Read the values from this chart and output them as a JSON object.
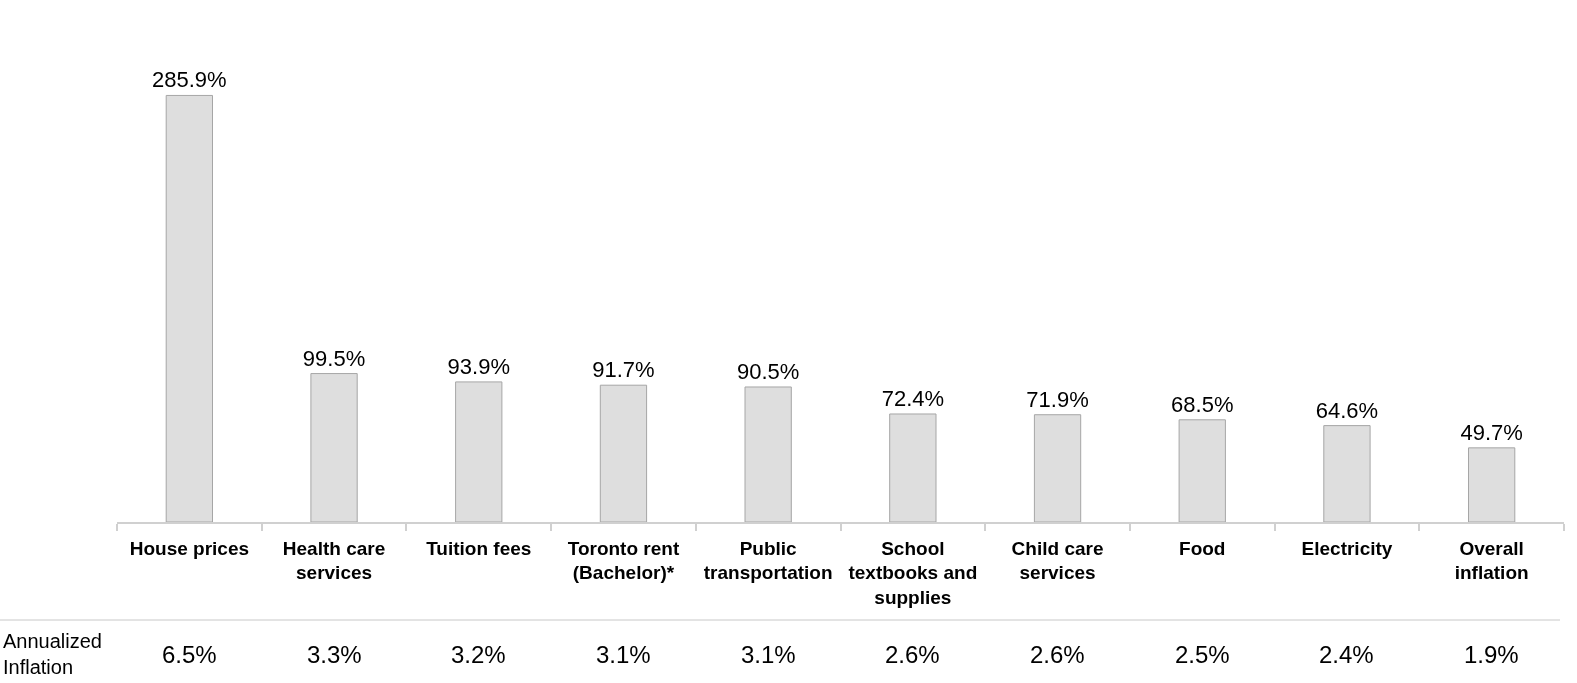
{
  "chart_data": {
    "type": "bar",
    "categories": [
      "House prices",
      "Health care services",
      "Tuition fees",
      "Toronto rent (Bachelor)*",
      "Public transportation",
      "School textbooks and supplies",
      "Child care services",
      "Food",
      "Electricity",
      "Overall inflation"
    ],
    "values": [
      285.9,
      99.5,
      93.9,
      91.7,
      90.5,
      72.4,
      71.9,
      68.5,
      64.6,
      49.7
    ],
    "color": "#dedede",
    "value_labels": [
      "285.9%",
      "99.5%",
      "93.9%",
      "91.7%",
      "90.5%",
      "72.4%",
      "71.9%",
      "68.5%",
      "64.6%",
      "49.7%"
    ],
    "annotations": [
      "Annualized Inflation",
      "6.5%",
      "3.3%",
      "3.2%",
      "3.1%",
      "3.1%",
      "2.6%",
      "2.6%",
      "2.5%",
      "2.4%",
      "1.9%"
    ]
  }
}
